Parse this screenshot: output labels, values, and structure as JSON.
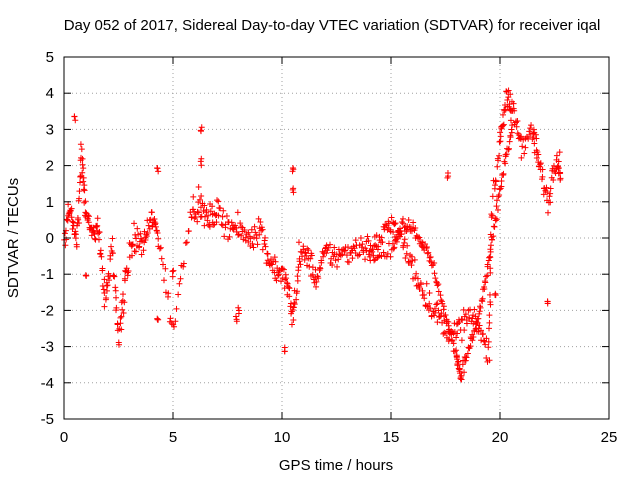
{
  "chart_data": {
    "type": "scatter",
    "title": "Day 052 of 2017, Sidereal Day-to-day VTEC variation (SDTVAR) for receiver iqal",
    "xlabel": "GPS time / hours",
    "ylabel": "SDTVAR / TECUs",
    "xlim": [
      0,
      25
    ],
    "ylim": [
      -5,
      5
    ],
    "xticks": [
      "0",
      "5",
      "10",
      "15",
      "20",
      "25"
    ],
    "yticks": [
      "5",
      "4",
      "3",
      "2",
      "1",
      "0",
      "-1",
      "-2",
      "-3",
      "-4",
      "-5"
    ],
    "grid": true,
    "marker": "+",
    "color": "#ff0000",
    "series": [
      {
        "name": "SDTVAR",
        "trend": [
          [
            0.0,
            0.0
          ],
          [
            0.3,
            0.8
          ],
          [
            0.6,
            -0.2
          ],
          [
            0.8,
            2.5
          ],
          [
            1.0,
            0.8
          ],
          [
            1.3,
            0.0
          ],
          [
            1.6,
            0.3
          ],
          [
            1.9,
            -1.8
          ],
          [
            2.2,
            -0.3
          ],
          [
            2.5,
            -2.8
          ],
          [
            2.8,
            -1.2
          ],
          [
            3.2,
            0.0
          ],
          [
            3.6,
            -0.2
          ],
          [
            4.0,
            0.5
          ],
          [
            4.3,
            0.2
          ],
          [
            5.0,
            -2.6
          ],
          [
            5.8,
            0.8
          ],
          [
            6.2,
            0.9
          ],
          [
            6.6,
            0.5
          ],
          [
            7.0,
            0.7
          ],
          [
            7.5,
            0.4
          ],
          [
            8.0,
            0.2
          ],
          [
            8.5,
            0.0
          ],
          [
            9.0,
            0.3
          ],
          [
            9.4,
            -0.6
          ],
          [
            9.8,
            -0.9
          ],
          [
            10.2,
            -1.2
          ],
          [
            10.5,
            -2.2
          ],
          [
            10.8,
            -0.5
          ],
          [
            11.2,
            -0.5
          ],
          [
            11.6,
            -1.2
          ],
          [
            12.0,
            -0.4
          ],
          [
            12.5,
            -0.5
          ],
          [
            13.0,
            -0.4
          ],
          [
            13.5,
            -0.2
          ],
          [
            14.0,
            -0.3
          ],
          [
            14.5,
            -0.1
          ],
          [
            15.0,
            0.5
          ],
          [
            15.5,
            -0.1
          ],
          [
            16.0,
            -0.8
          ],
          [
            16.5,
            -1.5
          ],
          [
            17.0,
            -2.0
          ],
          [
            17.5,
            -2.5
          ],
          [
            18.0,
            -2.6
          ],
          [
            18.5,
            -2.2
          ],
          [
            19.0,
            -2.4
          ],
          [
            19.5,
            -3.2
          ],
          [
            19.6,
            0.5
          ],
          [
            20.0,
            2.8
          ],
          [
            20.3,
            3.8
          ],
          [
            20.6,
            3.5
          ],
          [
            21.0,
            2.6
          ],
          [
            21.5,
            3.0
          ],
          [
            21.8,
            2.0
          ],
          [
            22.2,
            1.0
          ],
          [
            22.6,
            2.3
          ],
          [
            22.8,
            1.8
          ]
        ],
        "branch": [
          [
            14.0,
            -0.6
          ],
          [
            15.0,
            -0.4
          ],
          [
            15.5,
            0.4
          ],
          [
            16.0,
            0.3
          ],
          [
            16.5,
            -0.2
          ],
          [
            17.0,
            -0.9
          ],
          [
            17.5,
            -2.2
          ],
          [
            18.0,
            -3.2
          ],
          [
            18.2,
            -3.8
          ],
          [
            18.6,
            -3.0
          ],
          [
            19.0,
            -2.2
          ],
          [
            19.4,
            -1.0
          ],
          [
            19.8,
            0.5
          ],
          [
            20.2,
            2.0
          ],
          [
            20.6,
            3.1
          ]
        ],
        "isolated_points": [
          [
            0.5,
            3.3
          ],
          [
            1.0,
            -1.0
          ],
          [
            5.0,
            -1.0
          ],
          [
            6.3,
            3.0
          ],
          [
            6.3,
            2.1
          ],
          [
            7.9,
            -2.2
          ],
          [
            8.0,
            -2.0
          ],
          [
            10.1,
            -3.1
          ],
          [
            10.5,
            1.9
          ],
          [
            10.5,
            1.3
          ],
          [
            4.3,
            1.9
          ],
          [
            4.3,
            -2.2
          ],
          [
            17.6,
            1.7
          ],
          [
            19.8,
            -1.6
          ],
          [
            22.2,
            -1.8
          ]
        ]
      }
    ]
  }
}
